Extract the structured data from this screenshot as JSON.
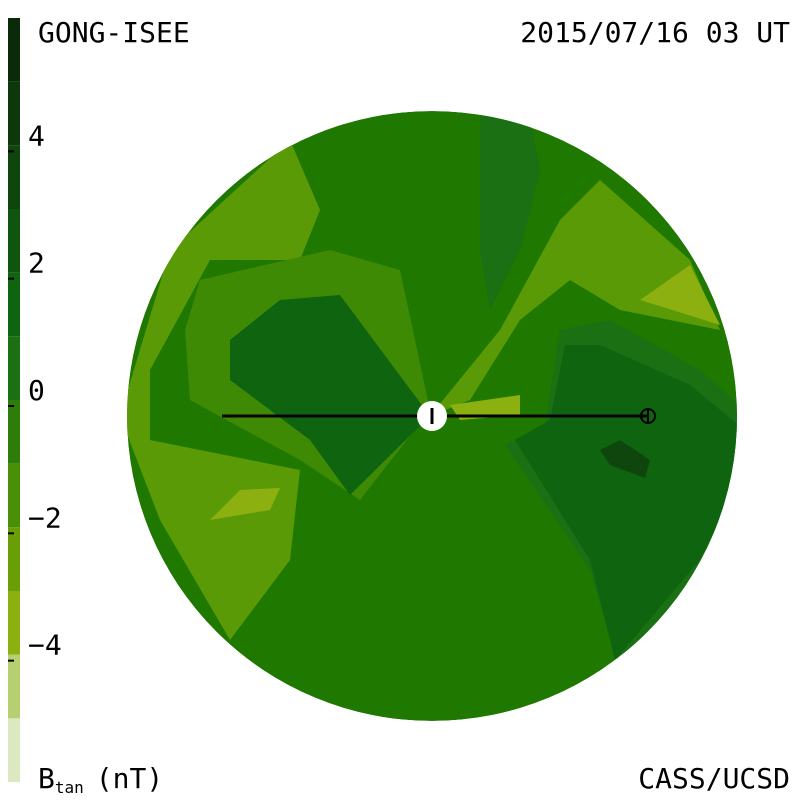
{
  "chart_data": {
    "type": "colormap",
    "title": "GONG-ISEE",
    "subtitle": "2015/07/16 03 UT",
    "credit": "CASS/UCSD",
    "colorbar_label": {
      "symbol": "B",
      "subscript": "tan",
      "unit": "(nT)"
    },
    "levels": [
      -6,
      -5,
      -4,
      -3,
      -2,
      -1,
      0,
      1,
      2,
      3,
      4,
      5,
      6
    ],
    "colors": [
      "#dce8c0",
      "#b6cf70",
      "#8cb010",
      "#6a9e06",
      "#4a8f08",
      "#2e7d0b",
      "#1a7012",
      "#0f6410",
      "#0f5510",
      "#0e460e",
      "#0c380c",
      "#0a2a0a"
    ],
    "ylim": [
      -6,
      6
    ],
    "yticks": [
      {
        "value": -4,
        "label": "−4"
      },
      {
        "value": -2,
        "label": "−2"
      },
      0,
      2,
      4
    ]
  }
}
